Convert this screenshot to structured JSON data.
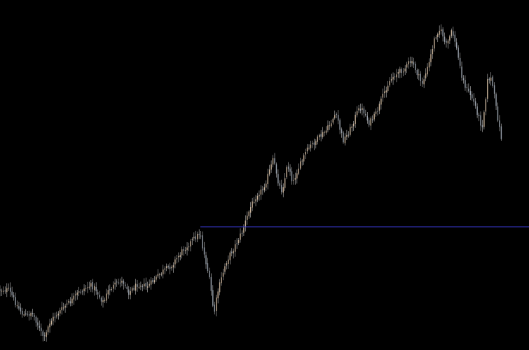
{
  "chart_data": {
    "type": "candlestick",
    "title": "",
    "xlabel": "",
    "ylabel": "",
    "grid": false,
    "legend": "none",
    "ylim": [
      0,
      500
    ],
    "y_direction": "down",
    "x": {
      "start": 0,
      "step": 2.45,
      "count": 293
    },
    "anchors": [
      [
        0,
        414
      ],
      [
        12,
        414
      ],
      [
        18,
        424
      ],
      [
        24,
        436
      ],
      [
        32,
        448
      ],
      [
        38,
        452
      ],
      [
        44,
        446
      ],
      [
        50,
        454
      ],
      [
        58,
        474
      ],
      [
        64,
        484
      ],
      [
        70,
        462
      ],
      [
        78,
        452
      ],
      [
        86,
        444
      ],
      [
        94,
        436
      ],
      [
        102,
        430
      ],
      [
        110,
        420
      ],
      [
        118,
        414
      ],
      [
        124,
        410
      ],
      [
        130,
        408
      ],
      [
        136,
        412
      ],
      [
        142,
        424
      ],
      [
        148,
        432
      ],
      [
        154,
        416
      ],
      [
        160,
        410
      ],
      [
        166,
        406
      ],
      [
        172,
        402
      ],
      [
        178,
        404
      ],
      [
        184,
        418
      ],
      [
        190,
        412
      ],
      [
        196,
        406
      ],
      [
        202,
        406
      ],
      [
        208,
        410
      ],
      [
        214,
        406
      ],
      [
        220,
        400
      ],
      [
        226,
        394
      ],
      [
        232,
        388
      ],
      [
        238,
        384
      ],
      [
        244,
        380
      ],
      [
        250,
        372
      ],
      [
        256,
        364
      ],
      [
        262,
        356
      ],
      [
        268,
        350
      ],
      [
        274,
        344
      ],
      [
        280,
        338
      ],
      [
        284,
        334
      ],
      [
        286,
        330
      ],
      [
        288,
        348
      ],
      [
        292,
        366
      ],
      [
        296,
        384
      ],
      [
        300,
        406
      ],
      [
        304,
        438
      ],
      [
        306,
        446
      ],
      [
        310,
        420
      ],
      [
        316,
        398
      ],
      [
        322,
        376
      ],
      [
        328,
        364
      ],
      [
        334,
        354
      ],
      [
        340,
        342
      ],
      [
        346,
        330
      ],
      [
        350,
        318
      ],
      [
        356,
        300
      ],
      [
        362,
        286
      ],
      [
        368,
        276
      ],
      [
        374,
        272
      ],
      [
        380,
        258
      ],
      [
        386,
        240
      ],
      [
        390,
        228
      ],
      [
        394,
        244
      ],
      [
        398,
        264
      ],
      [
        402,
        272
      ],
      [
        406,
        258
      ],
      [
        410,
        236
      ],
      [
        414,
        244
      ],
      [
        418,
        262
      ],
      [
        424,
        244
      ],
      [
        430,
        232
      ],
      [
        436,
        218
      ],
      [
        442,
        210
      ],
      [
        448,
        204
      ],
      [
        454,
        198
      ],
      [
        460,
        192
      ],
      [
        466,
        186
      ],
      [
        472,
        176
      ],
      [
        478,
        164
      ],
      [
        482,
        170
      ],
      [
        486,
        188
      ],
      [
        490,
        200
      ],
      [
        496,
        192
      ],
      [
        502,
        180
      ],
      [
        508,
        164
      ],
      [
        514,
        154
      ],
      [
        520,
        160
      ],
      [
        526,
        176
      ],
      [
        532,
        170
      ],
      [
        538,
        160
      ],
      [
        544,
        144
      ],
      [
        550,
        128
      ],
      [
        556,
        116
      ],
      [
        562,
        108
      ],
      [
        568,
        104
      ],
      [
        574,
        100
      ],
      [
        580,
        96
      ],
      [
        584,
        88
      ],
      [
        590,
        92
      ],
      [
        596,
        106
      ],
      [
        602,
        120
      ],
      [
        606,
        110
      ],
      [
        612,
        92
      ],
      [
        616,
        74
      ],
      [
        620,
        56
      ],
      [
        624,
        46
      ],
      [
        628,
        42
      ],
      [
        632,
        50
      ],
      [
        636,
        66
      ],
      [
        640,
        58
      ],
      [
        644,
        46
      ],
      [
        648,
        52
      ],
      [
        652,
        72
      ],
      [
        656,
        92
      ],
      [
        660,
        112
      ],
      [
        666,
        128
      ],
      [
        672,
        136
      ],
      [
        678,
        150
      ],
      [
        684,
        170
      ],
      [
        688,
        182
      ],
      [
        692,
        150
      ],
      [
        696,
        114
      ],
      [
        700,
        110
      ],
      [
        704,
        126
      ],
      [
        708,
        154
      ],
      [
        712,
        178
      ],
      [
        716,
        200
      ],
      [
        718,
        220
      ]
    ],
    "horizontal_line": {
      "y": 324,
      "from_x": 286,
      "color": "#3a3ad8"
    }
  },
  "colors": {
    "background": "#000000",
    "up": "#c9b39a",
    "down": "#9aa2ad",
    "wick": "#bdbdbd",
    "level_line": "#3a3ad8"
  }
}
